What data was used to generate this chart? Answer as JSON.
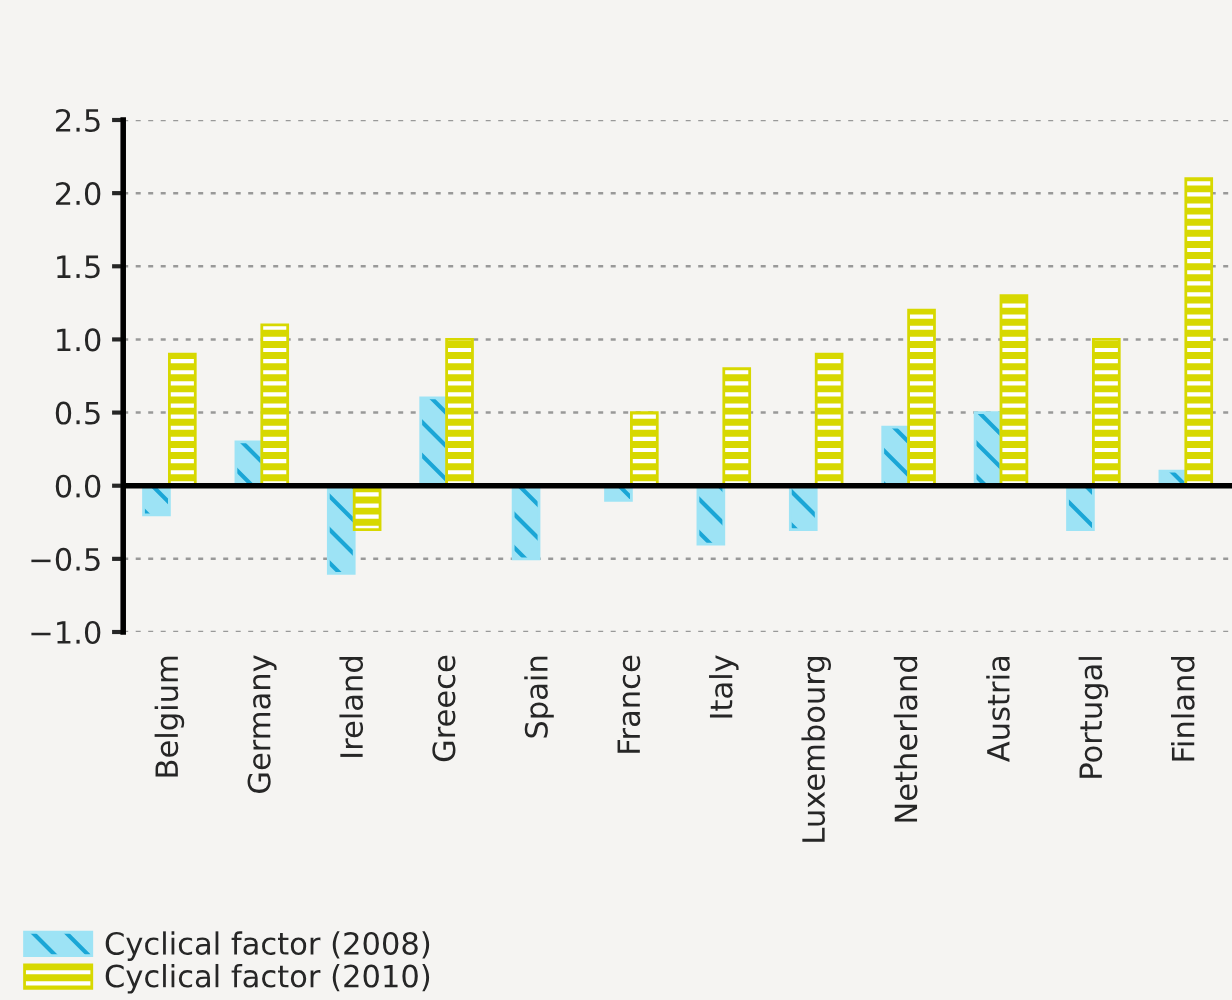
{
  "chart_data": {
    "type": "bar",
    "categories": [
      "Belgium",
      "Germany",
      "Ireland",
      "Greece",
      "Spain",
      "France",
      "Italy",
      "Luxembourg",
      "Netherland",
      "Austria",
      "Portugal",
      "Finland"
    ],
    "series": [
      {
        "name": "Cyclical factor (2008)",
        "color": "#9de3f5",
        "values": [
          -0.2,
          0.3,
          -0.6,
          0.6,
          -0.5,
          -0.1,
          -0.4,
          -0.3,
          0.4,
          0.5,
          -0.3,
          0.1
        ]
      },
      {
        "name": "Cyclical factor (2010)",
        "color": "#d7d800",
        "values": [
          0.9,
          1.1,
          -0.3,
          1.0,
          null,
          0.5,
          0.8,
          0.9,
          1.2,
          1.3,
          1.0,
          2.1
        ]
      }
    ],
    "ylim": [
      -1.0,
      2.5
    ],
    "yticks": [
      {
        "value": -1.0,
        "label": "−1.0"
      },
      {
        "value": -0.5,
        "label": "−0.5"
      },
      {
        "value": 0.0,
        "label": "0.0"
      },
      {
        "value": 0.5,
        "label": "0.5"
      },
      {
        "value": 1.0,
        "label": "1.0"
      },
      {
        "value": 1.5,
        "label": "1.5"
      },
      {
        "value": 2.0,
        "label": "2.0"
      },
      {
        "value": 2.5,
        "label": "2.5"
      }
    ],
    "ref_lines": [
      {
        "axis": "y",
        "value": 0,
        "color": "#000000"
      }
    ],
    "grid": "y",
    "legend": "bottom left"
  }
}
